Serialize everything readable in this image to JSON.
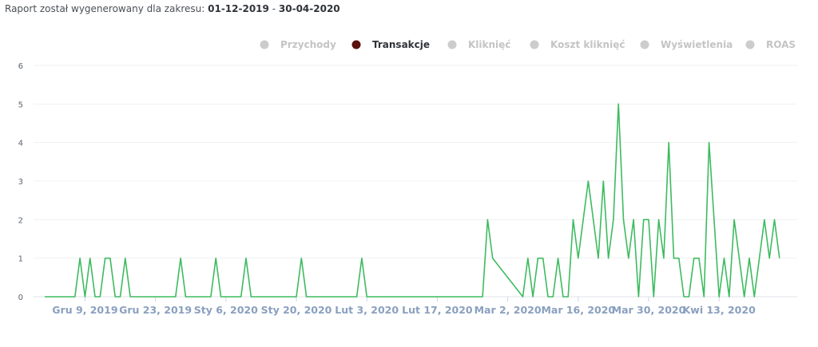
{
  "header": {
    "prefix": "Raport został wygenerowany dla zakresu:",
    "date_from": "01-12-2019",
    "separator": "-",
    "date_to": "30-04-2020"
  },
  "legend": [
    {
      "label": "Przychody",
      "color": "#cccccc",
      "active": false,
      "icon": "circle-dot-icon"
    },
    {
      "label": "Transakcje",
      "color": "#5c0f0f",
      "active": true,
      "icon": "circle-dot-icon"
    },
    {
      "label": "Kliknięć",
      "color": "#cccccc",
      "active": false,
      "icon": "circle-dot-icon"
    },
    {
      "label": "Koszt kliknięć",
      "color": "#cccccc",
      "active": false,
      "icon": "circle-dot-icon"
    },
    {
      "label": "Wyświetlenia",
      "color": "#cccccc",
      "active": false,
      "icon": "circle-dot-icon"
    },
    {
      "label": "ROAS",
      "color": "#cccccc",
      "active": false,
      "icon": "circle-dot-icon"
    }
  ],
  "chart_data": {
    "type": "line",
    "title": "",
    "xlabel": "",
    "ylabel": "",
    "ylim": [
      0,
      6
    ],
    "yticks": [
      0,
      1,
      2,
      3,
      4,
      5,
      6
    ],
    "grid": true,
    "legend_position": "top-right",
    "series_color": "#3dbb5f",
    "x_start": "2019-12-01",
    "x_end": "2020-04-30",
    "x_tick_labels": [
      {
        "date": "2019-12-09",
        "label": "Gru 9, 2019"
      },
      {
        "date": "2019-12-23",
        "label": "Gru 23, 2019"
      },
      {
        "date": "2020-01-06",
        "label": "Sty 6, 2020"
      },
      {
        "date": "2020-01-20",
        "label": "Sty 20, 2020"
      },
      {
        "date": "2020-02-03",
        "label": "Lut 3, 2020"
      },
      {
        "date": "2020-02-17",
        "label": "Lut 17, 2020"
      },
      {
        "date": "2020-03-02",
        "label": "Mar 2, 2020"
      },
      {
        "date": "2020-03-16",
        "label": "Mar 16, 2020"
      },
      {
        "date": "2020-03-30",
        "label": "Mar 30, 2020"
      },
      {
        "date": "2020-04-13",
        "label": "Kwi 13, 2020"
      }
    ],
    "series": [
      {
        "name": "Transakcje",
        "points": [
          [
            "2019-12-01",
            0
          ],
          [
            "2019-12-02",
            0
          ],
          [
            "2019-12-03",
            0
          ],
          [
            "2019-12-04",
            0
          ],
          [
            "2019-12-05",
            0
          ],
          [
            "2019-12-06",
            0
          ],
          [
            "2019-12-07",
            0
          ],
          [
            "2019-12-08",
            1
          ],
          [
            "2019-12-09",
            0
          ],
          [
            "2019-12-10",
            1
          ],
          [
            "2019-12-11",
            0
          ],
          [
            "2019-12-12",
            0
          ],
          [
            "2019-12-13",
            1
          ],
          [
            "2019-12-14",
            1
          ],
          [
            "2019-12-15",
            0
          ],
          [
            "2019-12-16",
            0
          ],
          [
            "2019-12-17",
            1
          ],
          [
            "2019-12-18",
            0
          ],
          [
            "2019-12-19",
            0
          ],
          [
            "2019-12-20",
            0
          ],
          [
            "2019-12-21",
            0
          ],
          [
            "2019-12-22",
            0
          ],
          [
            "2019-12-23",
            0
          ],
          [
            "2019-12-24",
            0
          ],
          [
            "2019-12-25",
            0
          ],
          [
            "2019-12-26",
            0
          ],
          [
            "2019-12-27",
            0
          ],
          [
            "2019-12-28",
            1
          ],
          [
            "2019-12-29",
            0
          ],
          [
            "2019-12-30",
            0
          ],
          [
            "2019-12-31",
            0
          ],
          [
            "2020-01-01",
            0
          ],
          [
            "2020-01-02",
            0
          ],
          [
            "2020-01-03",
            0
          ],
          [
            "2020-01-04",
            1
          ],
          [
            "2020-01-05",
            0
          ],
          [
            "2020-01-06",
            0
          ],
          [
            "2020-01-07",
            0
          ],
          [
            "2020-01-08",
            0
          ],
          [
            "2020-01-09",
            0
          ],
          [
            "2020-01-10",
            1
          ],
          [
            "2020-01-11",
            0
          ],
          [
            "2020-01-12",
            0
          ],
          [
            "2020-01-13",
            0
          ],
          [
            "2020-01-14",
            0
          ],
          [
            "2020-01-15",
            0
          ],
          [
            "2020-01-16",
            0
          ],
          [
            "2020-01-17",
            0
          ],
          [
            "2020-01-18",
            0
          ],
          [
            "2020-01-19",
            0
          ],
          [
            "2020-01-20",
            0
          ],
          [
            "2020-01-21",
            1
          ],
          [
            "2020-01-22",
            0
          ],
          [
            "2020-01-23",
            0
          ],
          [
            "2020-01-24",
            0
          ],
          [
            "2020-01-25",
            0
          ],
          [
            "2020-01-26",
            0
          ],
          [
            "2020-01-27",
            0
          ],
          [
            "2020-01-28",
            0
          ],
          [
            "2020-01-29",
            0
          ],
          [
            "2020-01-30",
            0
          ],
          [
            "2020-01-31",
            0
          ],
          [
            "2020-02-01",
            0
          ],
          [
            "2020-02-02",
            1
          ],
          [
            "2020-02-03",
            0
          ],
          [
            "2020-02-04",
            0
          ],
          [
            "2020-02-05",
            0
          ],
          [
            "2020-02-06",
            0
          ],
          [
            "2020-02-07",
            0
          ],
          [
            "2020-02-08",
            0
          ],
          [
            "2020-02-09",
            0
          ],
          [
            "2020-02-10",
            0
          ],
          [
            "2020-02-11",
            0
          ],
          [
            "2020-02-12",
            0
          ],
          [
            "2020-02-13",
            0
          ],
          [
            "2020-02-14",
            0
          ],
          [
            "2020-02-15",
            0
          ],
          [
            "2020-02-16",
            0
          ],
          [
            "2020-02-17",
            0
          ],
          [
            "2020-02-18",
            0
          ],
          [
            "2020-02-19",
            0
          ],
          [
            "2020-02-20",
            0
          ],
          [
            "2020-02-21",
            0
          ],
          [
            "2020-02-22",
            0
          ],
          [
            "2020-02-23",
            0
          ],
          [
            "2020-02-24",
            0
          ],
          [
            "2020-02-25",
            0
          ],
          [
            "2020-02-26",
            0
          ],
          [
            "2020-02-27",
            2
          ],
          [
            "2020-02-28",
            1
          ],
          [
            "2020-03-05",
            0
          ],
          [
            "2020-03-06",
            1
          ],
          [
            "2020-03-07",
            0
          ],
          [
            "2020-03-08",
            1
          ],
          [
            "2020-03-09",
            1
          ],
          [
            "2020-03-10",
            0
          ],
          [
            "2020-03-11",
            0
          ],
          [
            "2020-03-12",
            1
          ],
          [
            "2020-03-13",
            0
          ],
          [
            "2020-03-14",
            0
          ],
          [
            "2020-03-15",
            2
          ],
          [
            "2020-03-16",
            1
          ],
          [
            "2020-03-18",
            3
          ],
          [
            "2020-03-20",
            1
          ],
          [
            "2020-03-21",
            3
          ],
          [
            "2020-03-22",
            1
          ],
          [
            "2020-03-23",
            2
          ],
          [
            "2020-03-24",
            5
          ],
          [
            "2020-03-25",
            2
          ],
          [
            "2020-03-26",
            1
          ],
          [
            "2020-03-27",
            2
          ],
          [
            "2020-03-28",
            0
          ],
          [
            "2020-03-29",
            2
          ],
          [
            "2020-03-30",
            2
          ],
          [
            "2020-03-31",
            0
          ],
          [
            "2020-04-01",
            2
          ],
          [
            "2020-04-02",
            1
          ],
          [
            "2020-04-03",
            4
          ],
          [
            "2020-04-04",
            1
          ],
          [
            "2020-04-05",
            1
          ],
          [
            "2020-04-06",
            0
          ],
          [
            "2020-04-07",
            0
          ],
          [
            "2020-04-08",
            1
          ],
          [
            "2020-04-09",
            1
          ],
          [
            "2020-04-10",
            0
          ],
          [
            "2020-04-11",
            4
          ],
          [
            "2020-04-12",
            2
          ],
          [
            "2020-04-13",
            0
          ],
          [
            "2020-04-14",
            1
          ],
          [
            "2020-04-15",
            0
          ],
          [
            "2020-04-16",
            2
          ],
          [
            "2020-04-17",
            1
          ],
          [
            "2020-04-18",
            0
          ],
          [
            "2020-04-19",
            1
          ],
          [
            "2020-04-20",
            0
          ],
          [
            "2020-04-21",
            1
          ],
          [
            "2020-04-22",
            2
          ],
          [
            "2020-04-23",
            1
          ],
          [
            "2020-04-24",
            2
          ],
          [
            "2020-04-25",
            1
          ]
        ]
      }
    ]
  }
}
